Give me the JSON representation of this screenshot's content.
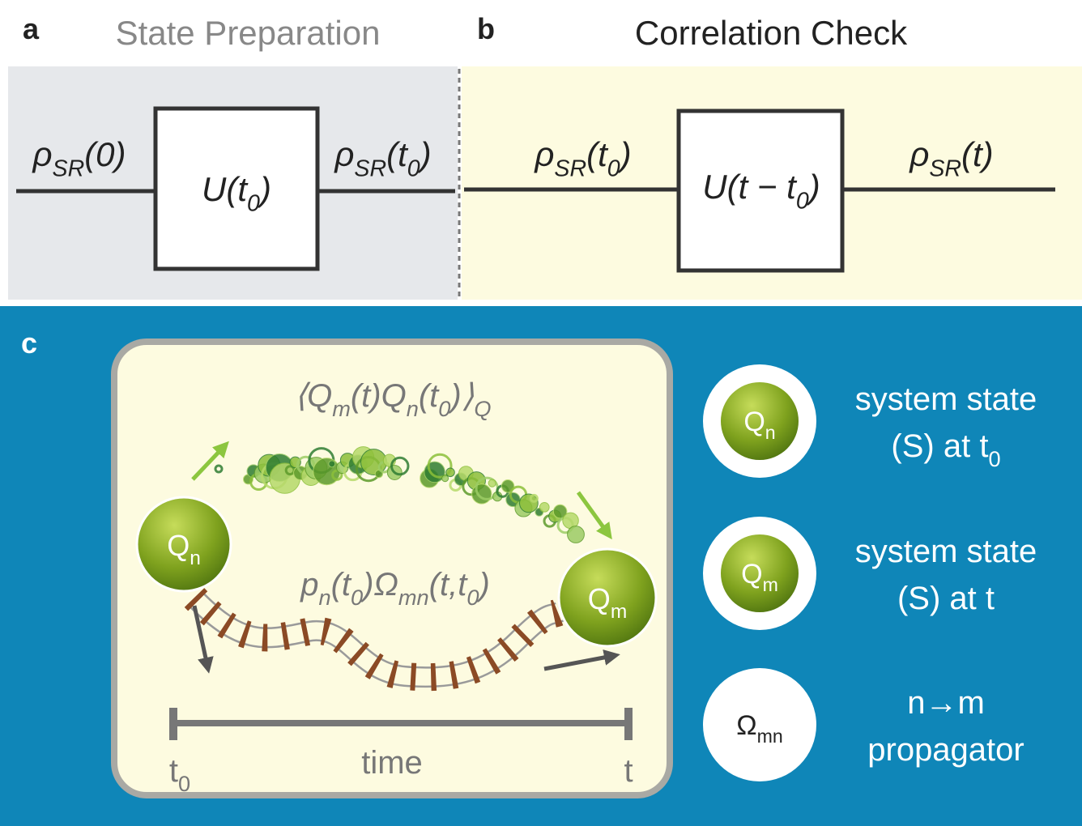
{
  "panel_a": {
    "label": "a",
    "title": "State Preparation",
    "input": [
      {
        "text": "ρ"
      },
      {
        "sub": "SR"
      },
      {
        "text": "(0)"
      }
    ],
    "gate": [
      {
        "text": "U(t"
      },
      {
        "sub": "0"
      },
      {
        "text": ")"
      }
    ],
    "output": [
      {
        "text": "ρ"
      },
      {
        "sub": "SR"
      },
      {
        "text": "(t"
      },
      {
        "sub": "0"
      },
      {
        "text": ")"
      }
    ]
  },
  "panel_b": {
    "label": "b",
    "title": "Correlation Check",
    "input": [
      {
        "text": "ρ"
      },
      {
        "sub": "SR"
      },
      {
        "text": "(t"
      },
      {
        "sub": "0"
      },
      {
        "text": ")"
      }
    ],
    "gate": [
      {
        "text": "U(t − t"
      },
      {
        "sub": "0"
      },
      {
        "text": ")"
      }
    ],
    "output": [
      {
        "text": "ρ"
      },
      {
        "sub": "SR"
      },
      {
        "text": "(t)"
      }
    ]
  },
  "panel_c": {
    "label": "c",
    "correlation": [
      {
        "text": "⟨Q"
      },
      {
        "sub": "m"
      },
      {
        "text": "(t)Q"
      },
      {
        "sub": "n"
      },
      {
        "text": "(t"
      },
      {
        "sub": "0"
      },
      {
        "text": ")⟩"
      },
      {
        "sub": "Q"
      }
    ],
    "propagation": [
      {
        "text": "p"
      },
      {
        "sub": "n"
      },
      {
        "text": "(t"
      },
      {
        "sub": "0"
      },
      {
        "text": ")Ω"
      },
      {
        "sub": "mn"
      },
      {
        "text": "(t,t"
      },
      {
        "sub": "0"
      },
      {
        "text": ")"
      }
    ],
    "start_node": [
      {
        "text": "Q"
      },
      {
        "sub": "n"
      }
    ],
    "end_node": [
      {
        "text": "Q"
      },
      {
        "sub": "m"
      }
    ],
    "time_axis": {
      "start": [
        {
          "text": "t"
        },
        {
          "sub": "0"
        }
      ],
      "label": "time",
      "end": "t"
    },
    "legend": [
      {
        "symbol": [
          {
            "text": "Q"
          },
          {
            "sub": "n"
          }
        ],
        "lines": [
          "system state",
          [
            {
              "text": "(S) at t"
            },
            {
              "sub": "0"
            }
          ]
        ]
      },
      {
        "symbol": [
          {
            "text": "Q"
          },
          {
            "sub": "m"
          }
        ],
        "lines": [
          "system state",
          "(S) at t"
        ]
      },
      {
        "symbol": [
          {
            "text": "Ω"
          },
          {
            "sub": "mn"
          }
        ],
        "lines": [
          "n→m",
          "propagator"
        ]
      }
    ]
  }
}
